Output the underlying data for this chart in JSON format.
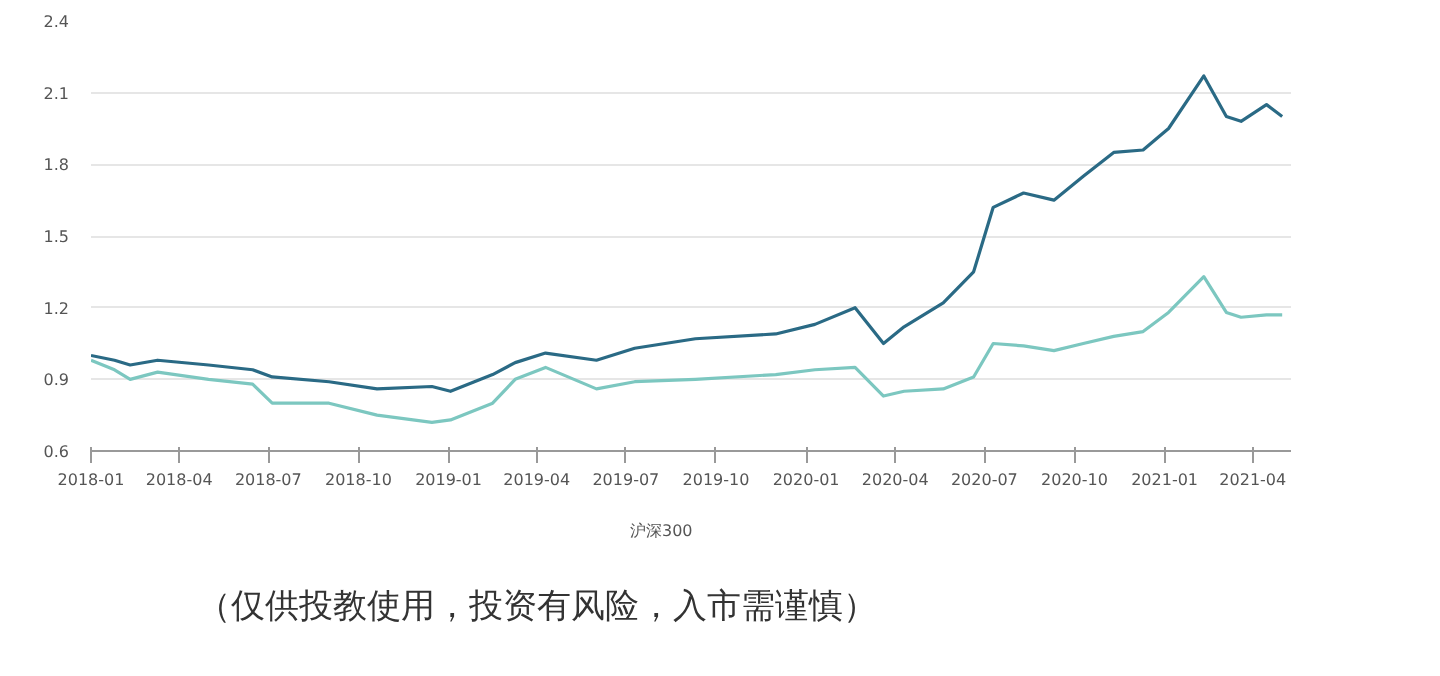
{
  "chart_data": {
    "type": "line",
    "x": [
      "2018-01-01",
      "2018-01-25",
      "2018-02-10",
      "2018-03-10",
      "2018-05-01",
      "2018-06-15",
      "2018-07-05",
      "2018-09-01",
      "2018-10-20",
      "2018-12-15",
      "2019-01-03",
      "2019-02-15",
      "2019-03-10",
      "2019-04-10",
      "2019-06-01",
      "2019-07-10",
      "2019-09-10",
      "2019-12-01",
      "2020-01-10",
      "2020-02-20",
      "2020-03-20",
      "2020-04-10",
      "2020-05-20",
      "2020-06-20",
      "2020-07-10",
      "2020-08-10",
      "2020-09-10",
      "2020-10-10",
      "2020-11-10",
      "2020-12-10",
      "2021-01-05",
      "2021-02-10",
      "2021-03-05",
      "2021-03-20",
      "2021-04-15",
      "2021-05-01"
    ],
    "series": [
      {
        "color": "#2a6a85",
        "values": [
          1.0,
          0.98,
          0.96,
          0.98,
          0.96,
          0.94,
          0.91,
          0.89,
          0.86,
          0.87,
          0.85,
          0.92,
          0.97,
          1.01,
          0.98,
          1.03,
          1.07,
          1.09,
          1.13,
          1.2,
          1.05,
          1.12,
          1.22,
          1.35,
          1.62,
          1.68,
          1.65,
          1.75,
          1.85,
          1.86,
          1.95,
          2.17,
          2.0,
          1.98,
          2.05,
          2.0
        ]
      },
      {
        "name": "沪深300",
        "color": "#7cc7c0",
        "values": [
          0.98,
          0.94,
          0.9,
          0.93,
          0.9,
          0.88,
          0.8,
          0.8,
          0.75,
          0.72,
          0.73,
          0.8,
          0.9,
          0.95,
          0.86,
          0.89,
          0.9,
          0.92,
          0.94,
          0.95,
          0.83,
          0.85,
          0.86,
          0.91,
          1.05,
          1.04,
          1.02,
          1.05,
          1.08,
          1.1,
          1.18,
          1.33,
          1.18,
          1.16,
          1.17,
          1.17
        ]
      }
    ],
    "xlim": [
      "2018-01-01",
      "2021-05-10"
    ],
    "xticks": [
      {
        "value": "2018-01-01",
        "label": "2018-01"
      },
      {
        "value": "2018-04-01",
        "label": "2018-04"
      },
      {
        "value": "2018-07-01",
        "label": "2018-07"
      },
      {
        "value": "2018-10-01",
        "label": "2018-10"
      },
      {
        "value": "2019-01-01",
        "label": "2019-01"
      },
      {
        "value": "2019-04-01",
        "label": "2019-04"
      },
      {
        "value": "2019-07-01",
        "label": "2019-07"
      },
      {
        "value": "2019-10-01",
        "label": "2019-10"
      },
      {
        "value": "2020-01-01",
        "label": "2020-01"
      },
      {
        "value": "2020-04-01",
        "label": "2020-04"
      },
      {
        "value": "2020-07-01",
        "label": "2020-07"
      },
      {
        "value": "2020-10-01",
        "label": "2020-10"
      },
      {
        "value": "2021-01-01",
        "label": "2021-01"
      },
      {
        "value": "2021-04-01",
        "label": "2021-04"
      }
    ],
    "ylim": [
      0.6,
      2.4
    ],
    "yticks": [
      0.6,
      0.9,
      1.2,
      1.5,
      1.8,
      2.1,
      2.4
    ],
    "grid": "y",
    "legend": "bottom",
    "marker": "none",
    "line_style": "solid",
    "annotations": [
      "（仅供投教使用，投资有风险，入市需谨慎）"
    ]
  }
}
